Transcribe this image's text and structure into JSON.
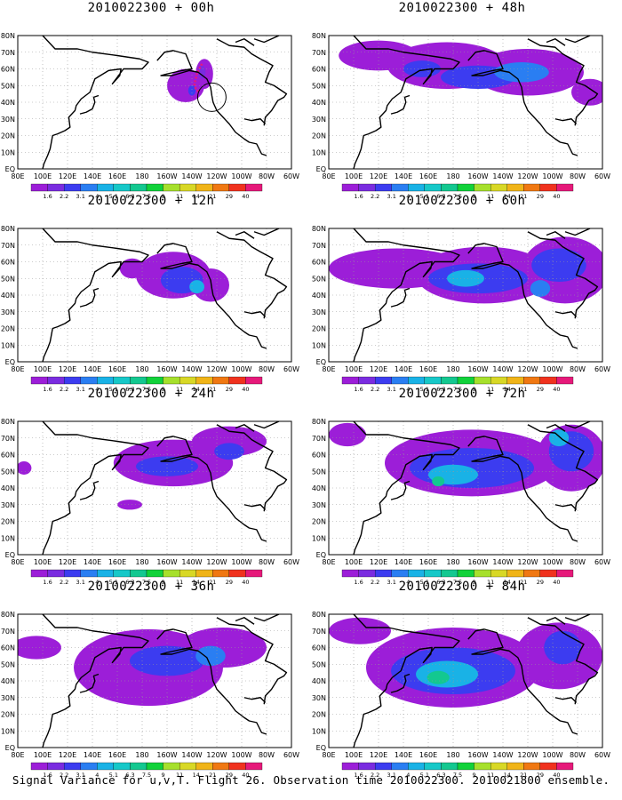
{
  "chart_data": {
    "type": "heatmap",
    "caption": "Signal Variance for u,v,T. Flight 26. Observation time 2010022300. 2010021800 ensemble.",
    "x_tick_labels": [
      "80E",
      "100E",
      "120E",
      "140E",
      "160E",
      "180",
      "160W",
      "140W",
      "120W",
      "100W",
      "80W",
      "60W"
    ],
    "y_tick_labels": [
      "EQ",
      "10N",
      "20N",
      "30N",
      "40N",
      "50N",
      "60N",
      "70N",
      "80N"
    ],
    "xlim": [
      80,
      300
    ],
    "ylim": [
      0,
      80
    ],
    "grid": true,
    "colorbar": {
      "labels": [
        "1.6",
        "2.2",
        "3.1",
        "4",
        "5.1",
        "6.3",
        "7.5",
        "9",
        "11",
        "14",
        "21",
        "29",
        "40"
      ],
      "colors": [
        "#9c1ed8",
        "#7a2ce0",
        "#3c3cf0",
        "#2a7ef2",
        "#19b2e6",
        "#16c8c8",
        "#13c890",
        "#11d23a",
        "#a6e02c",
        "#d8d826",
        "#f0b418",
        "#f07812",
        "#f0321e",
        "#e6197a"
      ]
    },
    "panels": [
      {
        "title": "2010022300 + 00h",
        "lead": "00h",
        "track": true,
        "blobs": [
          {
            "lon": 215,
            "lat": 50,
            "rx": 15,
            "ry": 10,
            "level": 0
          },
          {
            "lon": 230,
            "lat": 57,
            "rx": 7,
            "ry": 9,
            "level": 0
          },
          {
            "lon": 220,
            "lat": 47,
            "rx": 3,
            "ry": 3,
            "level": 2
          },
          {
            "lon": 228,
            "lat": 58,
            "rx": 3,
            "ry": 4,
            "level": 1
          }
        ]
      },
      {
        "title": "2010022300 + 48h",
        "lead": "48h",
        "blobs": [
          {
            "lon": 120,
            "lat": 68,
            "rx": 32,
            "ry": 9,
            "level": 0
          },
          {
            "lon": 175,
            "lat": 62,
            "rx": 48,
            "ry": 14,
            "level": 0
          },
          {
            "lon": 240,
            "lat": 58,
            "rx": 45,
            "ry": 14,
            "level": 0
          },
          {
            "lon": 290,
            "lat": 46,
            "rx": 15,
            "ry": 8,
            "level": 0
          },
          {
            "lon": 200,
            "lat": 55,
            "rx": 30,
            "ry": 7,
            "level": 2
          },
          {
            "lon": 235,
            "lat": 58,
            "rx": 22,
            "ry": 6,
            "level": 3
          },
          {
            "lon": 155,
            "lat": 60,
            "rx": 15,
            "ry": 5,
            "level": 2
          }
        ]
      },
      {
        "title": "2010022300 + 12h",
        "lead": "12h",
        "blobs": [
          {
            "lon": 205,
            "lat": 52,
            "rx": 30,
            "ry": 14,
            "level": 0
          },
          {
            "lon": 235,
            "lat": 46,
            "rx": 15,
            "ry": 10,
            "level": 0
          },
          {
            "lon": 172,
            "lat": 56,
            "rx": 10,
            "ry": 6,
            "level": 0
          },
          {
            "lon": 212,
            "lat": 49,
            "rx": 17,
            "ry": 8,
            "level": 2
          },
          {
            "lon": 224,
            "lat": 45,
            "rx": 6,
            "ry": 4,
            "level": 4
          }
        ]
      },
      {
        "title": "2010022300 + 60h",
        "lead": "60h",
        "blobs": [
          {
            "lon": 135,
            "lat": 56,
            "rx": 55,
            "ry": 12,
            "level": 0
          },
          {
            "lon": 205,
            "lat": 52,
            "rx": 55,
            "ry": 17,
            "level": 0
          },
          {
            "lon": 270,
            "lat": 55,
            "rx": 35,
            "ry": 20,
            "level": 0
          },
          {
            "lon": 200,
            "lat": 50,
            "rx": 40,
            "ry": 9,
            "level": 2
          },
          {
            "lon": 265,
            "lat": 58,
            "rx": 22,
            "ry": 10,
            "level": 2
          },
          {
            "lon": 190,
            "lat": 50,
            "rx": 15,
            "ry": 5,
            "level": 4
          },
          {
            "lon": 250,
            "lat": 44,
            "rx": 8,
            "ry": 5,
            "level": 3
          }
        ]
      },
      {
        "title": "2010022300 + 24h",
        "lead": "24h",
        "blobs": [
          {
            "lon": 85,
            "lat": 52,
            "rx": 6,
            "ry": 4,
            "level": 0
          },
          {
            "lon": 205,
            "lat": 55,
            "rx": 48,
            "ry": 14,
            "level": 0
          },
          {
            "lon": 250,
            "lat": 68,
            "rx": 30,
            "ry": 9,
            "level": 0
          },
          {
            "lon": 170,
            "lat": 30,
            "rx": 10,
            "ry": 3,
            "level": 0
          },
          {
            "lon": 200,
            "lat": 53,
            "rx": 25,
            "ry": 6,
            "level": 2
          },
          {
            "lon": 250,
            "lat": 62,
            "rx": 12,
            "ry": 5,
            "level": 2
          }
        ]
      },
      {
        "title": "2010022300 + 72h",
        "lead": "72h",
        "blobs": [
          {
            "lon": 95,
            "lat": 72,
            "rx": 15,
            "ry": 7,
            "level": 0
          },
          {
            "lon": 195,
            "lat": 55,
            "rx": 70,
            "ry": 20,
            "level": 0
          },
          {
            "lon": 275,
            "lat": 58,
            "rx": 28,
            "ry": 20,
            "level": 0
          },
          {
            "lon": 195,
            "lat": 52,
            "rx": 50,
            "ry": 12,
            "level": 2
          },
          {
            "lon": 275,
            "lat": 62,
            "rx": 18,
            "ry": 12,
            "level": 2
          },
          {
            "lon": 180,
            "lat": 48,
            "rx": 20,
            "ry": 6,
            "level": 4
          },
          {
            "lon": 168,
            "lat": 44,
            "rx": 5,
            "ry": 3,
            "level": 6
          },
          {
            "lon": 265,
            "lat": 70,
            "rx": 8,
            "ry": 5,
            "level": 4
          }
        ]
      },
      {
        "title": "2010022300 + 36h",
        "lead": "36h",
        "blobs": [
          {
            "lon": 95,
            "lat": 60,
            "rx": 20,
            "ry": 7,
            "level": 0
          },
          {
            "lon": 185,
            "lat": 48,
            "rx": 60,
            "ry": 23,
            "level": 0
          },
          {
            "lon": 245,
            "lat": 60,
            "rx": 35,
            "ry": 12,
            "level": 0
          },
          {
            "lon": 200,
            "lat": 52,
            "rx": 30,
            "ry": 9,
            "level": 2
          },
          {
            "lon": 235,
            "lat": 55,
            "rx": 12,
            "ry": 6,
            "level": 3
          }
        ]
      },
      {
        "title": "2010022300 + 84h",
        "lead": "84h",
        "blobs": [
          {
            "lon": 105,
            "lat": 70,
            "rx": 25,
            "ry": 8,
            "level": 0
          },
          {
            "lon": 180,
            "lat": 48,
            "rx": 70,
            "ry": 24,
            "level": 0
          },
          {
            "lon": 265,
            "lat": 55,
            "rx": 35,
            "ry": 20,
            "level": 0
          },
          {
            "lon": 180,
            "lat": 46,
            "rx": 50,
            "ry": 14,
            "level": 2
          },
          {
            "lon": 175,
            "lat": 44,
            "rx": 25,
            "ry": 8,
            "level": 4
          },
          {
            "lon": 168,
            "lat": 42,
            "rx": 9,
            "ry": 4,
            "level": 6
          },
          {
            "lon": 268,
            "lat": 60,
            "rx": 15,
            "ry": 10,
            "level": 2
          }
        ]
      }
    ]
  }
}
